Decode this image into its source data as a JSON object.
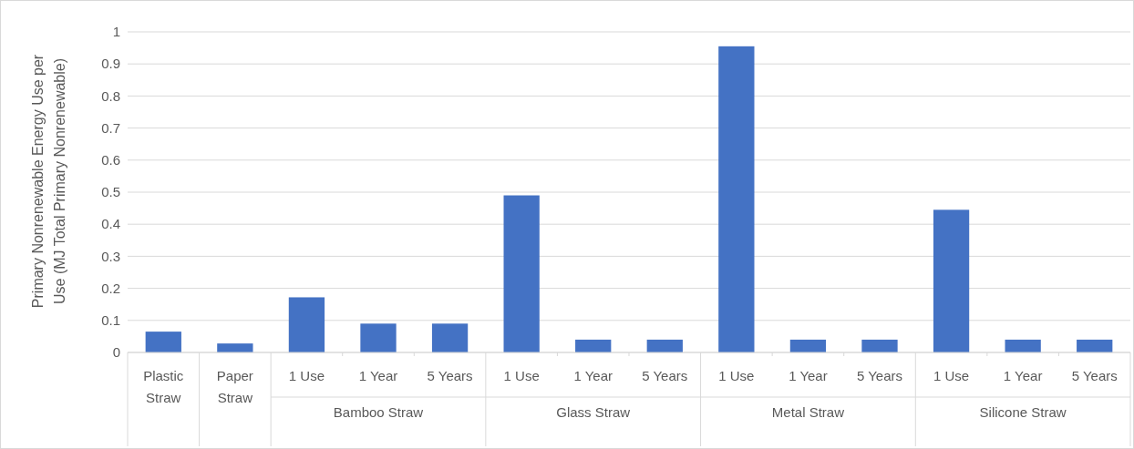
{
  "chart_data": {
    "type": "bar",
    "ylabel": "Primary Nonrenewable Energy Use per Use (MJ Total Primary Nonrenewable)",
    "categories": [
      "Plastic Straw",
      "Paper Straw",
      "1 Use",
      "1 Year",
      "5 Years",
      "1 Use",
      "1 Year",
      "5 Years",
      "1 Use",
      "1 Year",
      "5 Years",
      "1 Use",
      "1 Year",
      "5 Years"
    ],
    "values": [
      0.065,
      0.028,
      0.172,
      0.09,
      0.09,
      0.49,
      0.04,
      0.04,
      0.955,
      0.04,
      0.04,
      0.445,
      0.04,
      0.04
    ],
    "color": "#4472c4",
    "annotations": [
      "Bamboo Straw",
      "Glass Straw",
      "Metal Straw",
      "Silicone Straw"
    ],
    "ylim": [
      0,
      1
    ],
    "yticks": [
      0,
      0.1,
      0.2,
      0.3,
      0.4,
      0.5,
      0.6,
      0.7,
      0.8,
      0.9,
      1
    ],
    "grid": "y"
  }
}
